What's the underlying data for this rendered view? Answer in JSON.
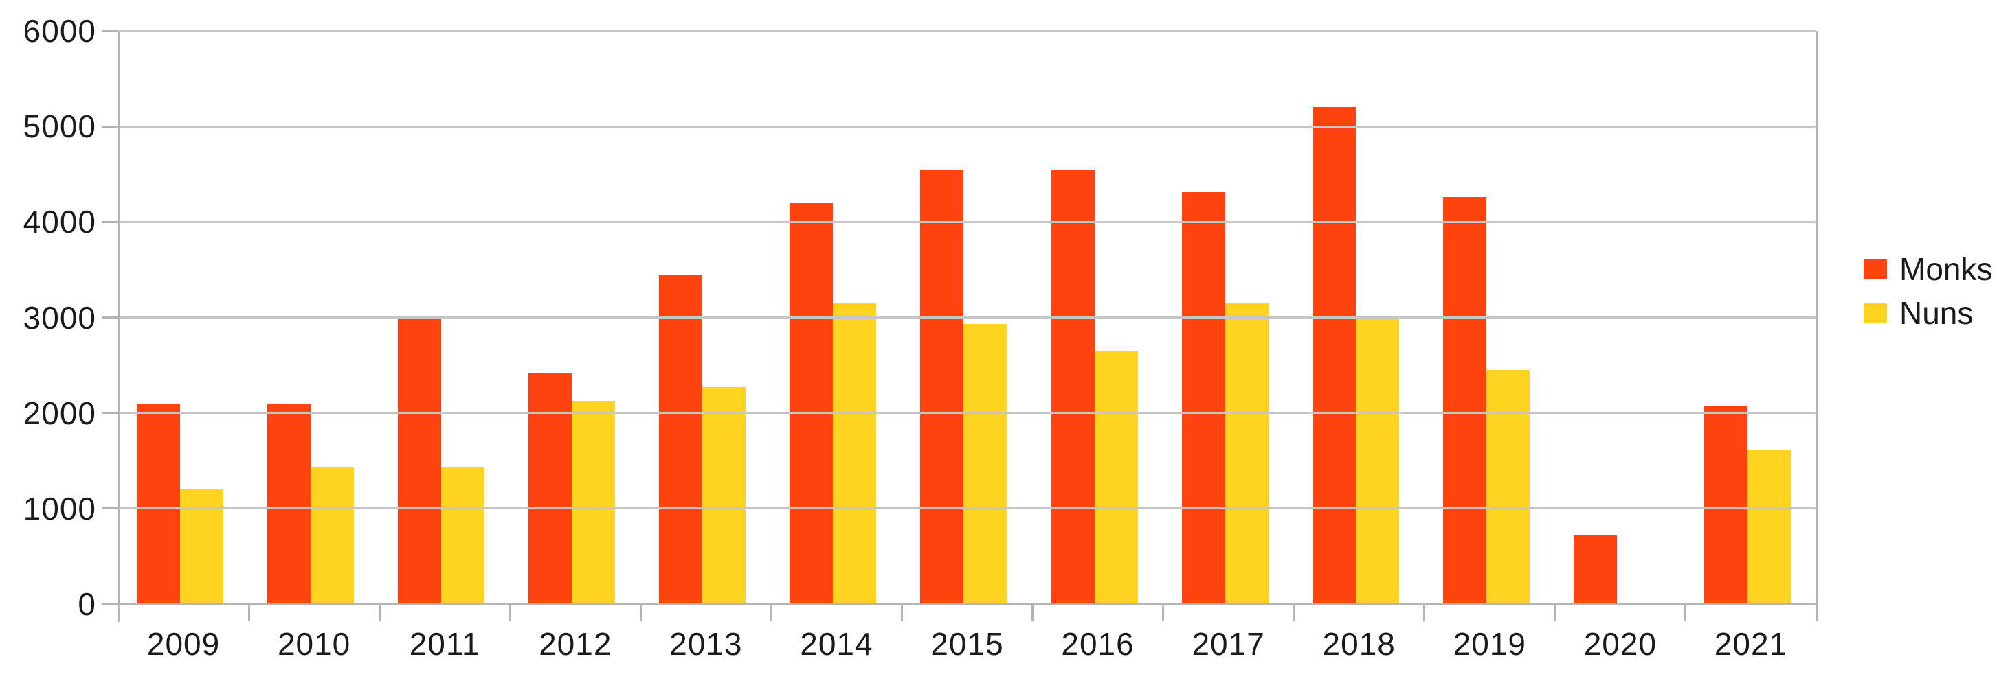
{
  "chart_data": {
    "type": "bar",
    "title": "",
    "xlabel": "",
    "ylabel": "",
    "categories": [
      "2009",
      "2010",
      "2011",
      "2012",
      "2013",
      "2014",
      "2015",
      "2016",
      "2017",
      "2018",
      "2019",
      "2020",
      "2021"
    ],
    "series": [
      {
        "name": "Monks",
        "color": "#ff420e",
        "values": [
          2100,
          2100,
          3000,
          2420,
          3450,
          4200,
          4550,
          4550,
          4310,
          5200,
          4260,
          720,
          2080
        ]
      },
      {
        "name": "Nuns",
        "color": "#ffd320",
        "values": [
          1210,
          1440,
          1440,
          2130,
          2270,
          3150,
          2930,
          2650,
          3150,
          3000,
          2450,
          0,
          1610
        ]
      }
    ],
    "ylim": [
      0,
      6000
    ],
    "ytick_step": 1000,
    "yticklabels": [
      "0",
      "1000",
      "2000",
      "3000",
      "4000",
      "5000",
      "6000"
    ],
    "grid": true,
    "legend_position": "right"
  },
  "colors": {
    "grid": "#c6c6c6",
    "axis": "#b3b3b3",
    "text": "#1a1a1a",
    "background": "#ffffff"
  }
}
